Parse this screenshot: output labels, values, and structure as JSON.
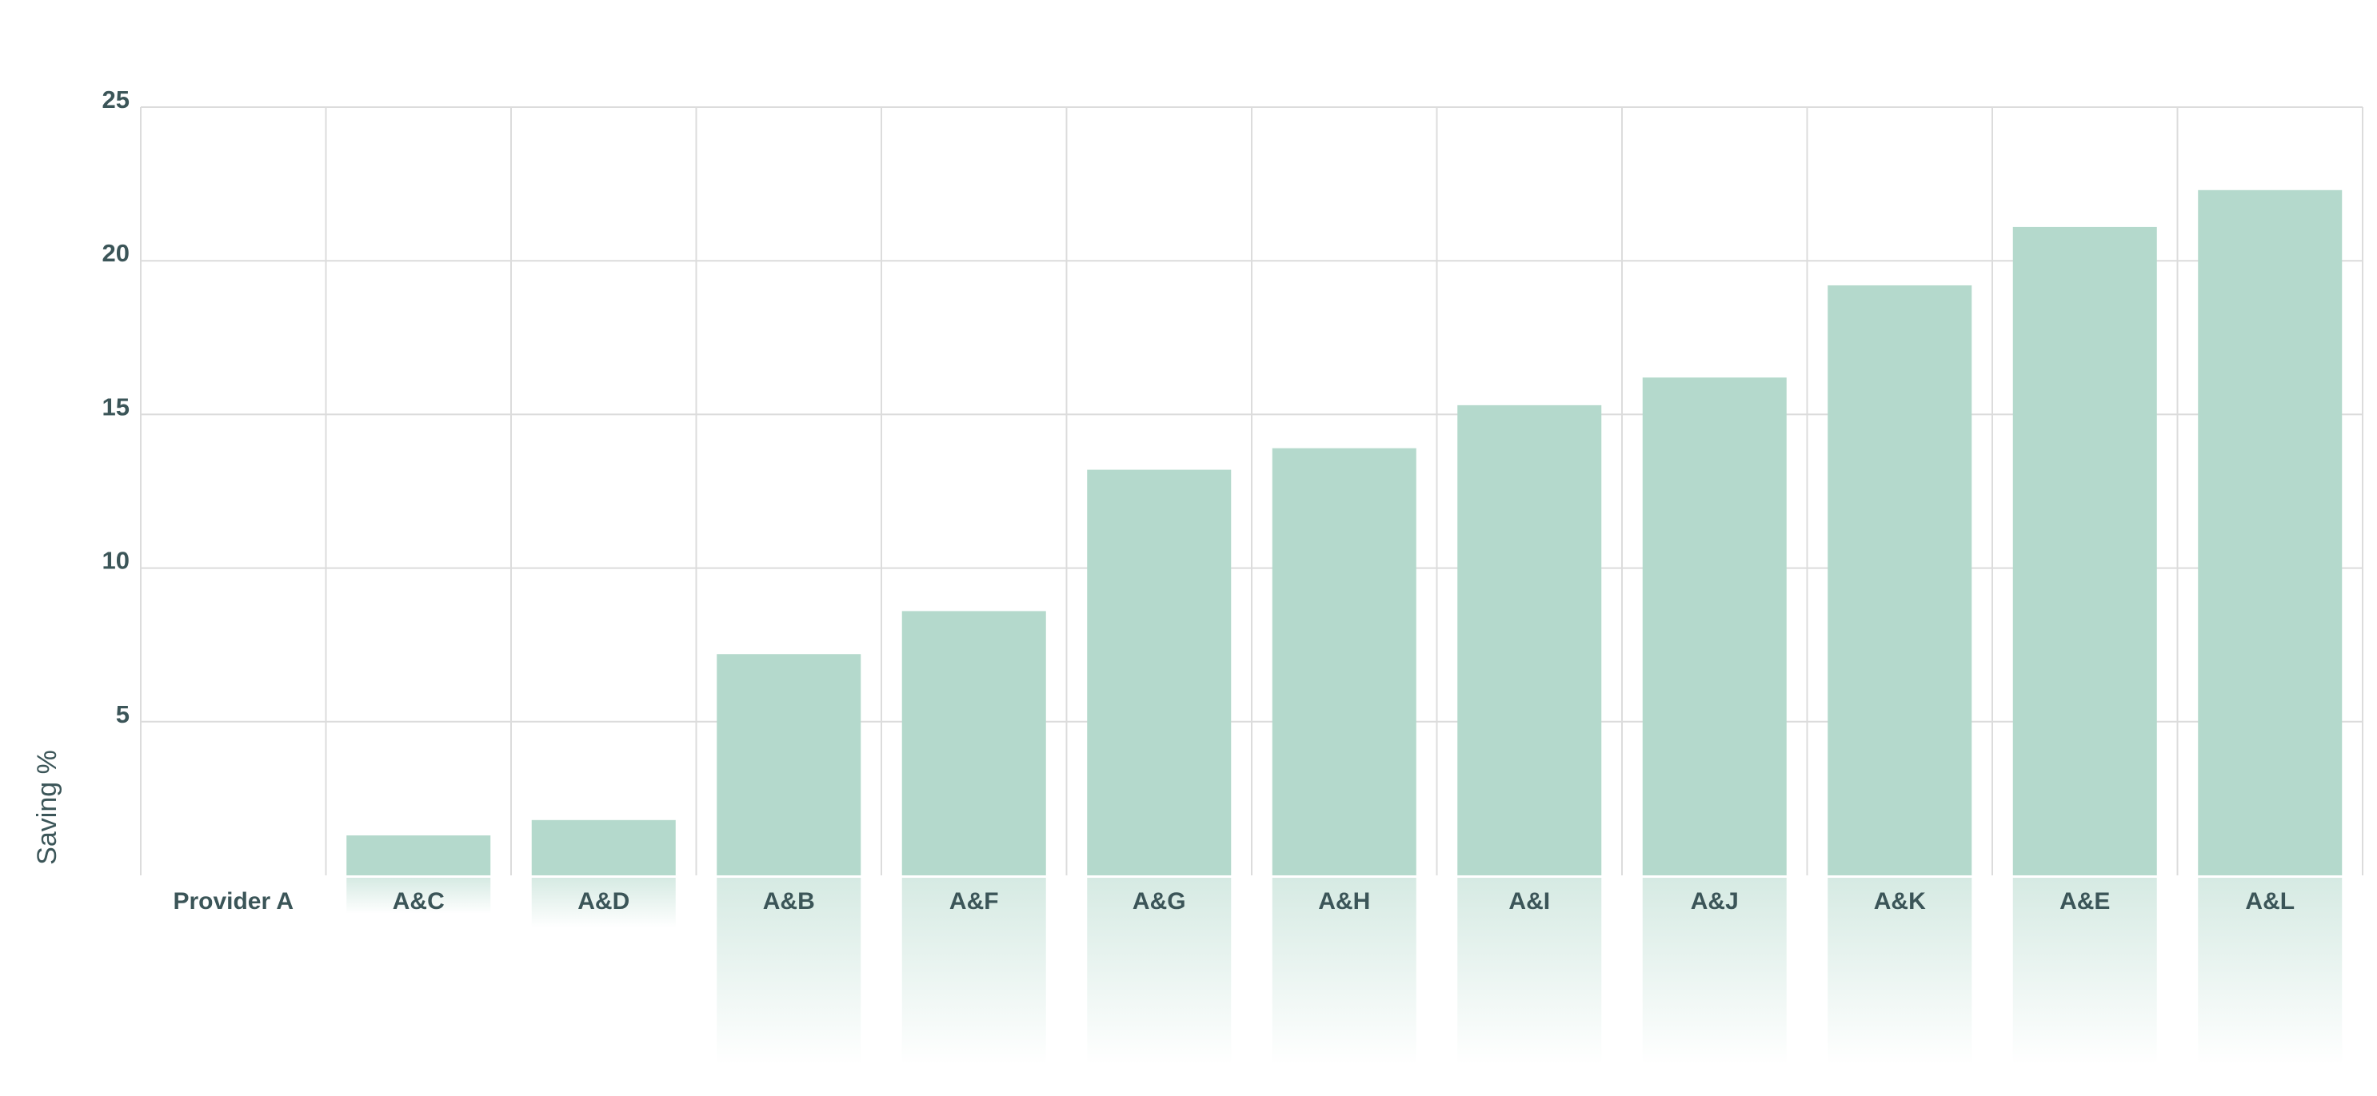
{
  "chart_data": {
    "type": "bar",
    "ylabel": "Saving %",
    "xlabel": "",
    "categories": [
      "Provider A",
      "A&C",
      "A&D",
      "A&B",
      "A&F",
      "A&G",
      "A&H",
      "A&I",
      "A&J",
      "A&K",
      "A&E",
      "A&L"
    ],
    "values": [
      0,
      1.3,
      1.8,
      7.2,
      8.6,
      13.2,
      13.9,
      15.3,
      16.2,
      19.2,
      21.1,
      22.3
    ],
    "ylim": [
      0,
      25
    ],
    "yticks": [
      5,
      10,
      15,
      20,
      25
    ],
    "grid": true,
    "legend": "none",
    "colors": {
      "bar": "#b4d9cc",
      "grid": "#dcdcdc",
      "text": "#3b5558"
    }
  }
}
